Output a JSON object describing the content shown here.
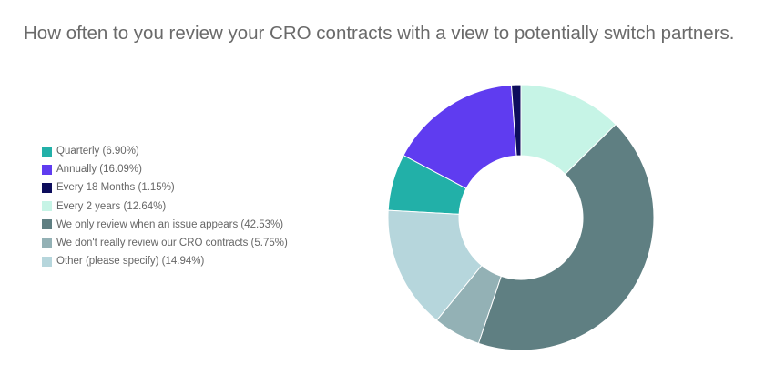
{
  "chart_data": {
    "type": "pie",
    "donut": true,
    "title": "How often to you review your CRO contracts with a view to potentially switch partners.",
    "legend_position": "left",
    "slices": [
      {
        "label": "Quarterly (6.90%)",
        "value": 6.9,
        "color": "#22b0a8"
      },
      {
        "label": "Annually (16.09%)",
        "value": 16.09,
        "color": "#5f3cf0"
      },
      {
        "label": "Every 18 Months (1.15%)",
        "value": 1.15,
        "color": "#0d0d5c"
      },
      {
        "label": "Every 2 years (12.64%)",
        "value": 12.64,
        "color": "#c6f4e6"
      },
      {
        "label": "We only review when an issue appears (42.53%)",
        "value": 42.53,
        "color": "#5f7f82"
      },
      {
        "label": "We don't really review our CRO contracts (5.75%)",
        "value": 5.75,
        "color": "#93b1b5"
      },
      {
        "label": "Other (please specify) (14.94%)",
        "value": 14.94,
        "color": "#b6d6dc"
      }
    ]
  }
}
